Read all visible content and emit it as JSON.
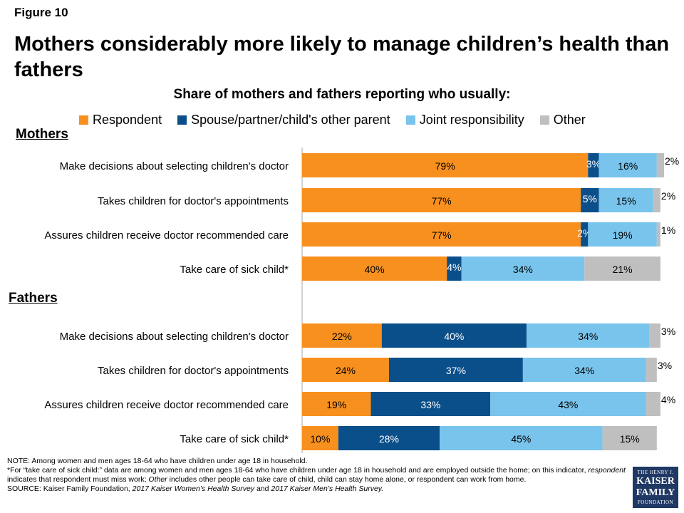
{
  "figure_label": "Figure 10",
  "title": "Mothers considerably more likely to manage children’s health than fathers",
  "subtitle": "Share of mothers and fathers reporting who usually:",
  "notes": {
    "note": "NOTE: Among women and men ages 18-64  who have children under age 18 in household.",
    "footnote_part1": "*For “take care of sick child:” data are among women and men ages 18-64  who have children under age 18 in household and are employed outside the home;  on this indicator, ",
    "footnote_respondent": "respondent",
    "footnote_part2": " indicates that respondent must miss work; ",
    "footnote_other": "Other",
    "footnote_part3": " includes other people can take care of child, child can stay home alone, or respondent can work from home.",
    "source_part1": "SOURCE: Kaiser Family Foundation, ",
    "source_survey1": "2017 Kaiser Women’s Health Survey",
    "source_and": " and ",
    "source_survey2": "2017 Kaiser Men’s Health Survey."
  },
  "logo": {
    "line1": "THE HENRY J.",
    "line2": "KAISER",
    "line3": "FAMILY",
    "line4": "FOUNDATION"
  },
  "chart_data": {
    "type": "bar",
    "orientation": "horizontal",
    "stacked": true,
    "xlim": [
      0,
      100
    ],
    "legend_position": "top",
    "series": [
      {
        "name": "Respondent",
        "color": "#f7901e"
      },
      {
        "name": "Spouse/partner/child's other parent",
        "color": "#0b4f8a"
      },
      {
        "name": "Joint responsibility",
        "color": "#78c4ec"
      },
      {
        "name": "Other",
        "color": "#bfbfbf"
      }
    ],
    "groups": [
      {
        "name": "Mothers",
        "categories": [
          {
            "label": "Make decisions about selecting children's doctor",
            "values": [
              79,
              3,
              16,
              2
            ]
          },
          {
            "label": "Takes children for doctor's appointments",
            "values": [
              77,
              5,
              15,
              2
            ]
          },
          {
            "label": "Assures children receive doctor recommended care",
            "values": [
              77,
              2,
              19,
              1
            ]
          },
          {
            "label": "Take care of sick child*",
            "values": [
              40,
              4,
              34,
              21
            ]
          }
        ]
      },
      {
        "name": "Fathers",
        "categories": [
          {
            "label": "Make decisions about selecting children's doctor",
            "values": [
              22,
              40,
              34,
              3
            ]
          },
          {
            "label": "Takes children for doctor's appointments",
            "values": [
              24,
              37,
              34,
              3
            ]
          },
          {
            "label": "Assures children receive doctor recommended care",
            "values": [
              19,
              33,
              43,
              4
            ]
          },
          {
            "label": "Take care of sick child*",
            "values": [
              10,
              28,
              45,
              15
            ]
          }
        ]
      }
    ]
  }
}
